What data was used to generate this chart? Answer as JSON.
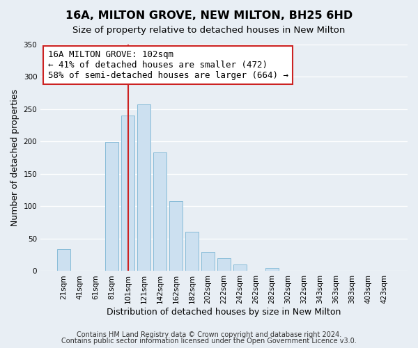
{
  "title": "16A, MILTON GROVE, NEW MILTON, BH25 6HD",
  "subtitle": "Size of property relative to detached houses in New Milton",
  "xlabel": "Distribution of detached houses by size in New Milton",
  "ylabel": "Number of detached properties",
  "bar_labels": [
    "21sqm",
    "41sqm",
    "61sqm",
    "81sqm",
    "101sqm",
    "121sqm",
    "142sqm",
    "162sqm",
    "182sqm",
    "202sqm",
    "222sqm",
    "242sqm",
    "262sqm",
    "282sqm",
    "302sqm",
    "322sqm",
    "343sqm",
    "363sqm",
    "383sqm",
    "403sqm",
    "423sqm"
  ],
  "bar_values": [
    34,
    0,
    0,
    199,
    240,
    258,
    183,
    108,
    61,
    30,
    20,
    10,
    0,
    5,
    0,
    0,
    0,
    0,
    0,
    1,
    0
  ],
  "bar_color": "#cce0f0",
  "bar_edge_color": "#88bcd8",
  "vline_index": 4,
  "vline_color": "#cc2222",
  "annotation_title": "16A MILTON GROVE: 102sqm",
  "annotation_line1": "← 41% of detached houses are smaller (472)",
  "annotation_line2": "58% of semi-detached houses are larger (664) →",
  "annotation_box_facecolor": "#ffffff",
  "annotation_box_edgecolor": "#cc2222",
  "ylim": [
    0,
    350
  ],
  "yticks": [
    0,
    50,
    100,
    150,
    200,
    250,
    300,
    350
  ],
  "figure_bg": "#e8eef4",
  "axes_bg": "#e8eef4",
  "grid_color": "#ffffff",
  "title_fontsize": 11.5,
  "subtitle_fontsize": 9.5,
  "axis_label_fontsize": 9,
  "tick_fontsize": 7.5,
  "annotation_fontsize": 9,
  "footer_fontsize": 7,
  "footer1": "Contains HM Land Registry data © Crown copyright and database right 2024.",
  "footer2": "Contains public sector information licensed under the Open Government Licence v3.0."
}
